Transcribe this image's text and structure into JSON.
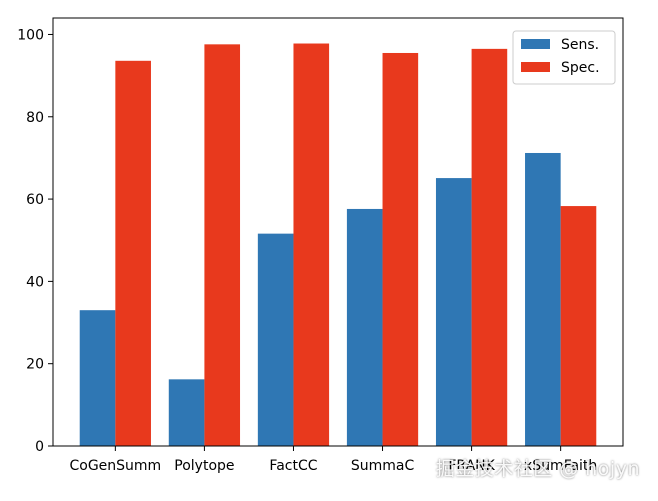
{
  "chart_data": {
    "type": "bar",
    "categories": [
      "CoGenSumm",
      "Polytope",
      "FactCC",
      "SummaC",
      "FRANK",
      "xSumFaith"
    ],
    "series": [
      {
        "name": "Sens.",
        "color": "#2f77b4",
        "values": [
          33,
          16.2,
          51.6,
          57.6,
          65.1,
          71.2
        ]
      },
      {
        "name": "Spec.",
        "color": "#e8391d",
        "values": [
          93.6,
          97.6,
          97.8,
          95.5,
          96.5,
          58.3
        ]
      }
    ],
    "title": "",
    "xlabel": "",
    "ylabel": "",
    "ylim": [
      0,
      104
    ],
    "yticks": [
      0,
      20,
      40,
      60,
      80,
      100
    ],
    "grid": false,
    "legend_position": "top-right"
  },
  "watermark": "掘金技术社区 @ hojyn"
}
